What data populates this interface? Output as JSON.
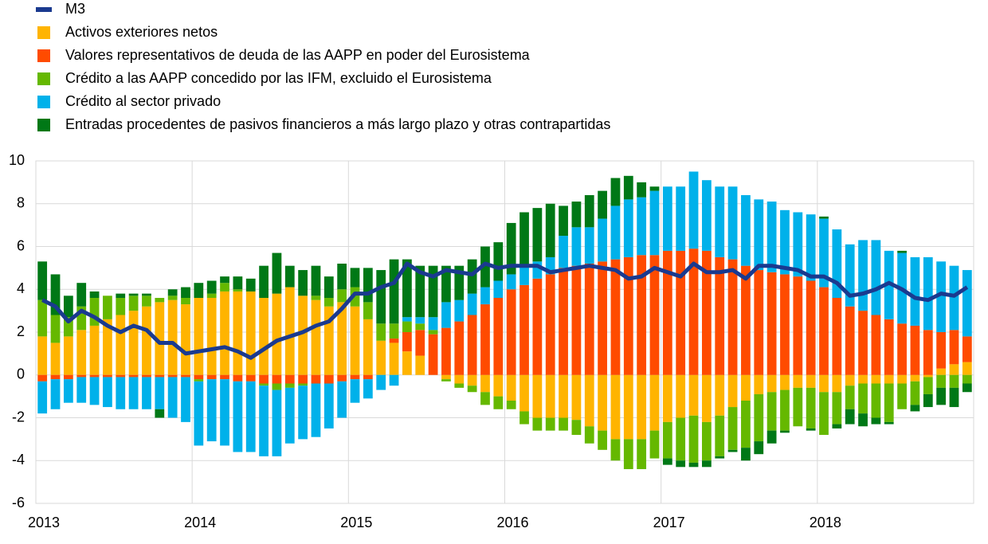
{
  "chart_data": {
    "type": "bar",
    "categories": [
      "2013",
      null,
      null,
      null,
      null,
      null,
      null,
      null,
      null,
      null,
      null,
      null,
      "2014",
      null,
      null,
      null,
      null,
      null,
      null,
      null,
      null,
      null,
      null,
      null,
      "2015",
      null,
      null,
      null,
      null,
      null,
      null,
      null,
      null,
      null,
      null,
      null,
      "2016",
      null,
      null,
      null,
      null,
      null,
      null,
      null,
      null,
      null,
      null,
      null,
      "2017",
      null,
      null,
      null,
      null,
      null,
      null,
      null,
      null,
      null,
      null,
      null,
      "2018",
      null,
      null,
      null,
      null,
      null,
      null,
      null,
      null,
      null,
      null,
      null
    ],
    "series": [
      {
        "name": "M3",
        "type": "line",
        "color": "#1a3a8f",
        "values": [
          3.5,
          3.2,
          2.5,
          3.0,
          2.7,
          2.3,
          2.0,
          2.3,
          2.1,
          1.5,
          1.5,
          1.0,
          1.1,
          1.2,
          1.3,
          1.1,
          0.8,
          1.2,
          1.6,
          1.8,
          2.0,
          2.3,
          2.5,
          3.1,
          3.8,
          3.8,
          4.1,
          4.3,
          5.2,
          4.8,
          4.6,
          4.9,
          4.8,
          4.7,
          5.2,
          5.0,
          5.1,
          5.1,
          5.1,
          4.8,
          4.9,
          5.0,
          5.1,
          5.0,
          4.9,
          4.5,
          4.6,
          5.0,
          4.8,
          4.6,
          5.2,
          4.8,
          4.8,
          4.9,
          4.5,
          5.1,
          5.1,
          5.0,
          4.9,
          4.6,
          4.6,
          4.3,
          3.7,
          3.8,
          4.0,
          4.3,
          4.0,
          3.6,
          3.5,
          3.8,
          3.7,
          4.1
        ]
      },
      {
        "name": "Activos exteriores netos",
        "color": "#ffb400",
        "values": [
          1.8,
          1.5,
          1.8,
          2.1,
          2.3,
          2.6,
          2.8,
          3.0,
          3.2,
          3.4,
          3.5,
          3.3,
          3.6,
          3.6,
          3.9,
          3.9,
          3.9,
          3.6,
          3.8,
          4.1,
          3.7,
          3.5,
          3.2,
          3.4,
          3.2,
          2.6,
          1.6,
          1.5,
          1.1,
          0.9,
          0.0,
          -0.2,
          -0.4,
          -0.5,
          -0.8,
          -1.0,
          -1.2,
          -1.7,
          -2.0,
          -2.0,
          -2.0,
          -2.1,
          -2.4,
          -2.6,
          -3.0,
          -3.0,
          -3.0,
          -2.6,
          -2.2,
          -2.0,
          -1.9,
          -2.2,
          -1.9,
          -1.5,
          -1.2,
          -0.9,
          -0.8,
          -0.7,
          -0.6,
          -0.6,
          -0.8,
          -0.8,
          -0.5,
          -0.4,
          -0.4,
          -0.4,
          -0.4,
          -0.3,
          -0.1,
          0.3,
          0.5,
          0.6
        ]
      },
      {
        "name": "Valores representativos de deuda de las AAPP en poder del Eurosistema",
        "color": "#ff4b00",
        "values": [
          -0.3,
          -0.2,
          -0.2,
          -0.1,
          -0.1,
          -0.1,
          -0.1,
          -0.1,
          -0.1,
          -0.1,
          -0.1,
          -0.1,
          -0.2,
          -0.2,
          -0.2,
          -0.3,
          -0.3,
          -0.4,
          -0.4,
          -0.4,
          -0.4,
          -0.4,
          -0.4,
          -0.3,
          -0.2,
          -0.2,
          0.0,
          0.2,
          0.9,
          1.2,
          1.9,
          2.2,
          2.5,
          2.8,
          3.3,
          3.6,
          4.0,
          4.2,
          4.5,
          4.7,
          5.0,
          5.1,
          5.2,
          5.3,
          5.4,
          5.5,
          5.6,
          5.6,
          5.8,
          5.8,
          5.9,
          5.8,
          5.5,
          5.4,
          5.1,
          4.9,
          4.8,
          4.7,
          4.6,
          4.4,
          4.1,
          3.6,
          3.2,
          3.0,
          2.8,
          2.6,
          2.4,
          2.3,
          2.1,
          1.7,
          1.6,
          1.2
        ]
      },
      {
        "name": "Crédito a las AAPP concedido por las IFM, excluido el Eurosistema",
        "color": "#65b800",
        "values": [
          1.7,
          1.3,
          0.9,
          1.1,
          1.3,
          1.1,
          0.8,
          0.7,
          0.5,
          0.2,
          0.2,
          0.3,
          -0.1,
          0.2,
          0.4,
          0.1,
          0.0,
          -0.1,
          -0.3,
          -0.2,
          -0.1,
          0.2,
          0.4,
          0.6,
          0.9,
          0.8,
          0.8,
          0.7,
          0.5,
          0.3,
          0.2,
          -0.1,
          -0.2,
          -0.3,
          -0.6,
          -0.6,
          -0.4,
          -0.6,
          -0.6,
          -0.6,
          -0.6,
          -0.7,
          -0.8,
          -0.9,
          -1.0,
          -1.4,
          -1.4,
          -1.3,
          -1.7,
          -2.0,
          -2.2,
          -1.8,
          -1.9,
          -2.0,
          -2.2,
          -2.2,
          -1.8,
          -1.9,
          -1.8,
          -1.9,
          -2.0,
          -1.5,
          -1.1,
          -1.4,
          -1.6,
          -1.8,
          -1.2,
          -1.1,
          -0.8,
          -0.6,
          -0.6,
          -0.4
        ]
      },
      {
        "name": "Crédito al sector privado",
        "color": "#00b1ea",
        "values": [
          -1.5,
          -1.4,
          -1.1,
          -1.2,
          -1.3,
          -1.4,
          -1.5,
          -1.5,
          -1.5,
          -1.5,
          -1.9,
          -2.1,
          -3.0,
          -2.9,
          -3.1,
          -3.3,
          -3.3,
          -3.3,
          -3.1,
          -2.6,
          -2.5,
          -2.5,
          -2.1,
          -1.7,
          -1.1,
          -0.9,
          -0.7,
          -0.5,
          0.2,
          0.3,
          0.6,
          1.2,
          1.0,
          1.0,
          0.8,
          0.8,
          0.7,
          0.9,
          0.8,
          0.8,
          1.5,
          1.8,
          1.7,
          2.0,
          2.5,
          2.7,
          2.7,
          3.0,
          3.0,
          3.0,
          3.6,
          3.3,
          3.3,
          3.4,
          3.3,
          3.3,
          3.3,
          3.0,
          3.0,
          3.1,
          3.2,
          3.2,
          2.9,
          3.3,
          3.5,
          3.2,
          3.3,
          3.2,
          3.4,
          3.3,
          3.0,
          3.1
        ]
      },
      {
        "name": "Entradas procedentes de pasivos financieros a más largo plazo y otras contrapartidas",
        "color": "#007816",
        "values": [
          1.8,
          1.9,
          1.0,
          1.1,
          0.3,
          0.0,
          0.2,
          0.1,
          0.1,
          -0.4,
          0.3,
          0.5,
          0.7,
          0.6,
          0.3,
          0.6,
          0.6,
          1.5,
          1.9,
          1.0,
          1.2,
          1.4,
          1.0,
          1.2,
          0.9,
          1.6,
          2.5,
          3.0,
          2.7,
          2.4,
          2.4,
          1.7,
          1.6,
          1.6,
          1.9,
          1.8,
          2.4,
          2.5,
          2.5,
          2.5,
          1.4,
          1.2,
          1.5,
          1.3,
          1.3,
          1.1,
          0.7,
          0.2,
          -0.3,
          -0.3,
          -0.2,
          -0.3,
          -0.1,
          -0.1,
          -0.6,
          -0.6,
          -0.6,
          -0.1,
          0.0,
          -0.1,
          0.1,
          -0.2,
          -0.7,
          -0.6,
          -0.3,
          -0.1,
          0.1,
          -0.3,
          -0.6,
          -0.8,
          -0.9,
          -0.4
        ]
      }
    ],
    "ylim": [
      -6,
      10
    ],
    "yticks": [
      -6,
      -4,
      -2,
      0,
      2,
      4,
      6,
      8,
      10
    ],
    "grid": true
  }
}
